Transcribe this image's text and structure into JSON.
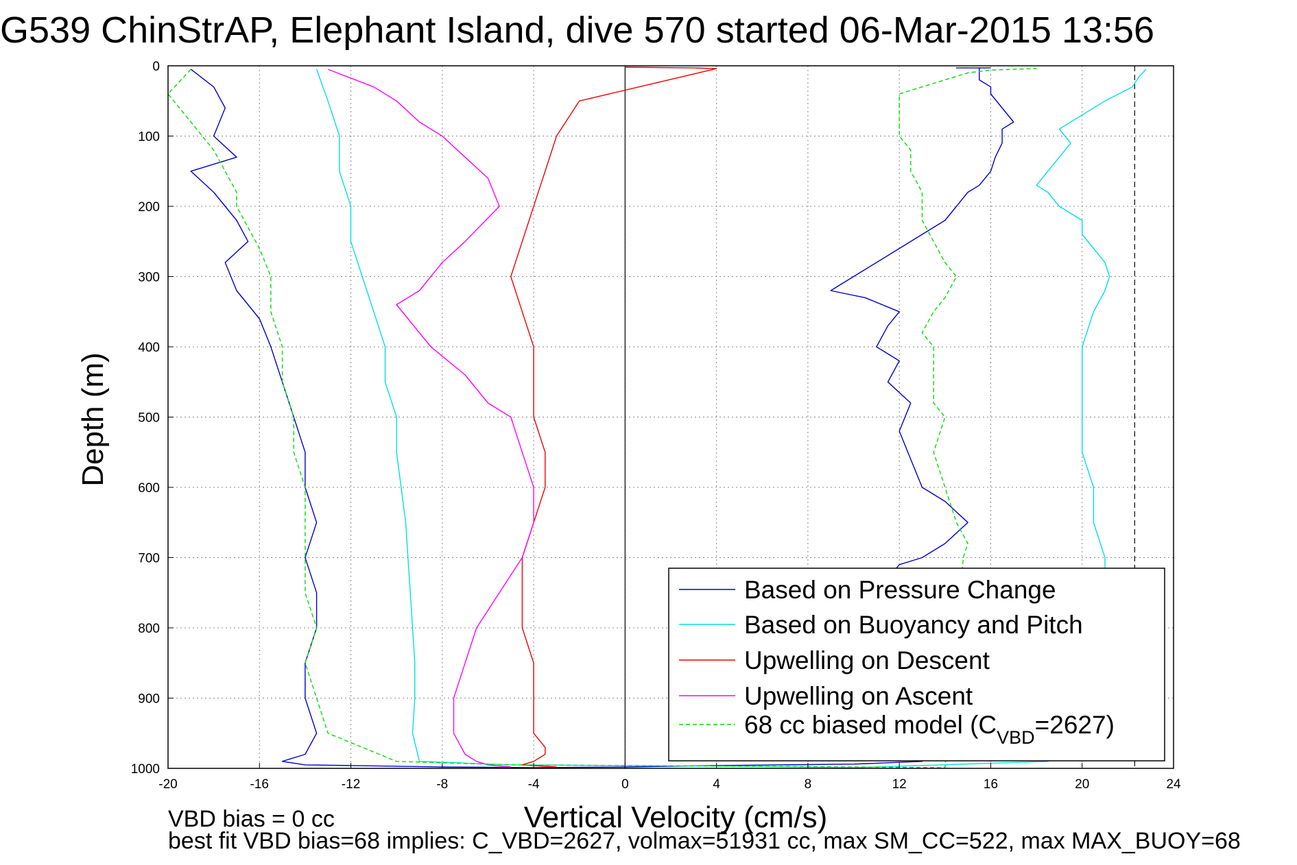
{
  "chart_data": {
    "type": "line",
    "title": "G539 ChinStrAP, Elephant Island, dive 570 started 06-Mar-2015 13:56",
    "xlabel": "Vertical Velocity (cm/s)",
    "ylabel": "Depth (m)",
    "xlim": [
      -20,
      24
    ],
    "ylim": [
      1000,
      0
    ],
    "grid": true,
    "legend_position": "bottom-right",
    "x_ticks": [
      "-20",
      "-16",
      "-12",
      "-8",
      "-4",
      "0",
      "4",
      "8",
      "12",
      "16",
      "20",
      "24"
    ],
    "y_ticks": [
      "0",
      "100",
      "200",
      "300",
      "400",
      "500",
      "600",
      "700",
      "800",
      "900",
      "1000"
    ],
    "reference_lines": [
      {
        "x": 0,
        "style": "solid",
        "color": "#000000"
      },
      {
        "x": 22.3,
        "style": "dashed",
        "color": "#000000"
      }
    ],
    "series": [
      {
        "name": "Based on Pressure Change",
        "color": "#0000cc",
        "style": "solid",
        "x": [
          -19,
          -18,
          -17.5,
          -18,
          -17,
          -19,
          -18,
          -17,
          -16.5,
          -17.5,
          -17,
          -16,
          -15.5,
          -15,
          -14.5,
          -14,
          -14,
          -13.5,
          -14,
          -13.5,
          -13.5,
          -14,
          -14,
          -13.5,
          -14,
          -15,
          -14,
          -12,
          -10,
          -8,
          -4,
          0,
          4,
          10,
          13,
          11,
          10.5,
          10,
          9,
          9.5,
          11,
          12,
          13,
          14,
          15,
          14,
          13,
          12.5,
          12,
          12.5,
          11.5,
          12,
          11,
          11.5,
          12,
          10.5,
          9,
          10,
          11,
          12,
          13,
          14,
          14.5,
          15,
          15.5,
          16,
          16.2,
          16.5,
          16.5,
          17,
          16.5,
          16,
          16,
          15.5,
          15.5,
          15.5,
          15.5,
          15,
          15,
          14.8,
          14.8,
          14.5,
          14.8,
          15,
          15,
          15.3,
          15.5,
          15.5,
          16
        ],
        "y": [
          5,
          30,
          60,
          100,
          130,
          150,
          180,
          220,
          250,
          280,
          320,
          360,
          400,
          450,
          500,
          550,
          600,
          650,
          700,
          750,
          800,
          850,
          900,
          950,
          980,
          990,
          995,
          996,
          997,
          998,
          999,
          998,
          996,
          994,
          990,
          980,
          950,
          900,
          850,
          800,
          750,
          710,
          700,
          680,
          650,
          620,
          600,
          560,
          520,
          480,
          450,
          420,
          400,
          370,
          350,
          330,
          320,
          300,
          280,
          260,
          240,
          220,
          200,
          180,
          170,
          150,
          130,
          110,
          90,
          80,
          60,
          40,
          30,
          20,
          10,
          5,
          3,
          3,
          3,
          3,
          3,
          3,
          3,
          3,
          3,
          3,
          3,
          3,
          3
        ]
      },
      {
        "name": "Based on Buoyancy and Pitch",
        "color": "#00e0e0",
        "style": "solid",
        "x": [
          -13.5,
          -13,
          -12.5,
          -12.5,
          -12,
          -12,
          -11.5,
          -11,
          -10.5,
          -10.5,
          -10,
          -10,
          -9.8,
          -9.6,
          -9.5,
          -9.4,
          -9.3,
          -9.2,
          -9.2,
          -9.3,
          -9,
          -5,
          0,
          5,
          10,
          18.5,
          20.5,
          21,
          21.2,
          21.3,
          21,
          21,
          20.5,
          20.5,
          20,
          20,
          20,
          20,
          20.5,
          21,
          21.2,
          21,
          20.5,
          20,
          20,
          19,
          18.5,
          18,
          18.5,
          19,
          19.5,
          19,
          20,
          21,
          22.2,
          22.5,
          22.8
        ],
        "y": [
          5,
          50,
          100,
          150,
          200,
          250,
          300,
          350,
          400,
          450,
          500,
          550,
          600,
          650,
          700,
          750,
          800,
          850,
          900,
          950,
          990,
          995,
          996,
          997,
          999,
          990,
          950,
          900,
          850,
          800,
          750,
          700,
          650,
          600,
          550,
          500,
          450,
          400,
          350,
          320,
          300,
          280,
          260,
          240,
          220,
          200,
          180,
          170,
          150,
          130,
          110,
          90,
          70,
          50,
          30,
          15,
          5
        ]
      },
      {
        "name": "Upwelling on Descent",
        "color": "#ee0000",
        "style": "solid",
        "x": [
          0,
          3,
          4,
          -2,
          -3,
          -3.5,
          -4,
          -4.5,
          -5,
          -4.5,
          -4,
          -4,
          -4,
          -3.5,
          -3.5,
          -4,
          -4.5,
          -4.5,
          -4.5,
          -4,
          -4,
          -4,
          -3.5,
          -3.5,
          -4,
          -4.5,
          -3
        ],
        "y": [
          2,
          3,
          4,
          50,
          100,
          150,
          200,
          250,
          300,
          350,
          400,
          450,
          500,
          550,
          600,
          650,
          700,
          750,
          800,
          850,
          900,
          950,
          970,
          980,
          990,
          995,
          998
        ]
      },
      {
        "name": "Upwelling on Ascent",
        "color": "#ff00ff",
        "style": "solid",
        "x": [
          -13,
          -11,
          -10,
          -9,
          -8,
          -7,
          -6,
          -5.5,
          -7,
          -8,
          -9,
          -10,
          -9.5,
          -8.5,
          -7,
          -6,
          -5,
          -4.5,
          -4,
          -4,
          -4.5,
          -5.5,
          -6.5,
          -7,
          -7.5,
          -7.5,
          -7,
          -6.5,
          -6,
          -5
        ],
        "y": [
          5,
          30,
          50,
          80,
          100,
          130,
          160,
          200,
          250,
          280,
          320,
          340,
          360,
          400,
          440,
          480,
          500,
          550,
          600,
          650,
          700,
          750,
          800,
          850,
          900,
          950,
          980,
          990,
          995,
          998
        ]
      },
      {
        "name": "68 cc biased model (C_VBD=2627)",
        "color": "#00dd00",
        "style": "dashed",
        "x": [
          -19,
          -20,
          -19,
          -18,
          -17.5,
          -17,
          -17,
          -16.5,
          -16,
          -15.5,
          -15.5,
          -15,
          -15,
          -14.5,
          -14.5,
          -14,
          -14,
          -14,
          -14,
          -13.5,
          -14,
          -13.5,
          -13,
          -10,
          -5,
          0,
          5,
          10,
          14,
          14.8,
          15,
          14.5,
          14,
          13.5,
          14,
          13.5,
          13.5,
          13.5,
          13,
          13.5,
          14,
          14.5,
          14,
          13.5,
          13,
          13,
          13,
          12.5,
          12.5,
          12,
          12,
          12,
          12,
          13,
          14,
          15,
          16,
          17,
          18
        ],
        "y": [
          5,
          40,
          80,
          120,
          150,
          180,
          200,
          230,
          260,
          300,
          350,
          400,
          450,
          500,
          550,
          600,
          650,
          700,
          750,
          800,
          850,
          900,
          950,
          990,
          995,
          996,
          997,
          998,
          999,
          700,
          680,
          650,
          600,
          550,
          500,
          480,
          450,
          400,
          380,
          350,
          330,
          300,
          280,
          250,
          220,
          200,
          180,
          150,
          120,
          100,
          80,
          60,
          40,
          30,
          20,
          10,
          6,
          5,
          4
        ]
      }
    ],
    "notes": [
      "VBD bias = 0 cc",
      "best fit VBD bias=68 implies: C_VBD=2627, volmax=51931 cc, max SM_CC=522, max MAX_BUOY=68"
    ]
  }
}
